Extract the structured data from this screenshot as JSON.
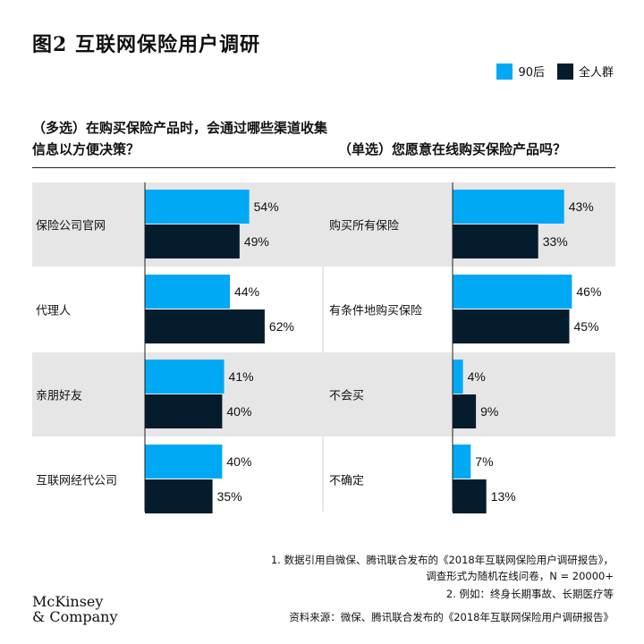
{
  "title": "图2 互联网保险用户调研",
  "legend": [
    {
      "label": "90后",
      "color": "#00a9f4"
    },
    {
      "label": "全人群",
      "color": "#051c2c"
    }
  ],
  "question_left": "（多选）在购买保险产品时，会通过哪些渠道收集信息以方便决策？",
  "question_right": "（单选）您愿意在线购买保险产品吗？",
  "chart_data": [
    {
      "type": "bar",
      "title": "（多选）在购买保险产品时，会通过哪些渠道收集信息以方便决策？",
      "categories": [
        "保险公司官网",
        "代理人",
        "亲朋好友",
        "互联网经代公司"
      ],
      "series": [
        {
          "name": "90后",
          "values": [
            54,
            44,
            41,
            40
          ]
        },
        {
          "name": "全人群",
          "values": [
            49,
            62,
            40,
            35
          ]
        }
      ],
      "unit": "%",
      "xlim": [
        0,
        100
      ]
    },
    {
      "type": "bar",
      "title": "（单选）您愿意在线购买保险产品吗？",
      "categories": [
        "购买所有保险",
        "有条件地购买保险",
        "不会买",
        "不确定"
      ],
      "series": [
        {
          "name": "90后",
          "values": [
            43,
            46,
            4,
            7
          ]
        },
        {
          "name": "全人群",
          "values": [
            33,
            45,
            9,
            13
          ]
        }
      ],
      "unit": "%",
      "xlim": [
        0,
        100
      ]
    }
  ],
  "footnotes": [
    "1.  数据引用自微保、腾讯联合发布的《2018年互联网保险用户调研报告》，",
    "调查形式为随机在线问卷，N = 20000+",
    "2.  例如：终身长期事故、长期医疗等",
    "资料来源：微保、腾讯联合发布的《2018年互联网保险用户调研报告》"
  ],
  "logo": [
    "McKinsey",
    "& Company"
  ]
}
